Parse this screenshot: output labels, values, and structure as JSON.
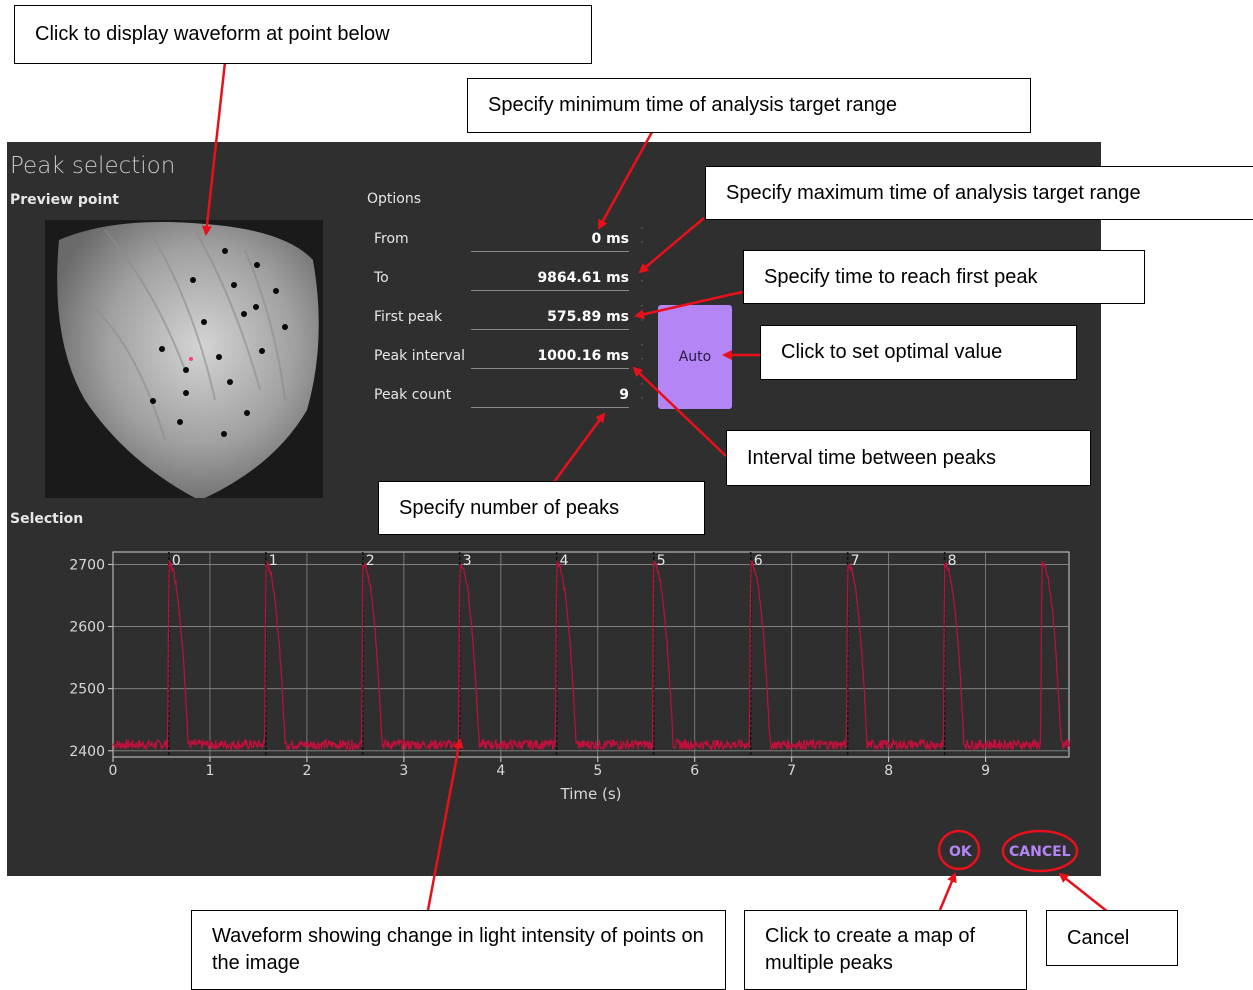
{
  "dialog": {
    "title": "Peak selection",
    "preview_label": "Preview point",
    "options_label": "Options",
    "selection_label": "Selection",
    "auto_label": "Auto",
    "ok_label": "OK",
    "cancel_label": "CANCEL"
  },
  "options": [
    {
      "label": "From",
      "value": "0 ms"
    },
    {
      "label": "To",
      "value": "9864.61 ms"
    },
    {
      "label": "First peak",
      "value": "575.89 ms"
    },
    {
      "label": "Peak interval",
      "value": "1000.16 ms"
    },
    {
      "label": "Peak count",
      "value": "9"
    }
  ],
  "callouts": {
    "waveform_point": "Click to display waveform at point below",
    "min_time": "Specify minimum time of analysis target range",
    "max_time": "Specify maximum time of analysis target range",
    "first_peak": "Specify time to reach first peak",
    "auto": "Click to set optimal value",
    "interval": "Interval time between peaks",
    "count": "Specify number of peaks",
    "waveform": "Waveform showing change in light intensity of points on the image",
    "ok": "Click to create a map of multiple peaks",
    "cancel": "Cancel"
  },
  "colors": {
    "dialog_bg": "#2f2f2f",
    "accent": "#b385f5",
    "trace": "#c0103c",
    "annotation": "#e8101a"
  },
  "chart_data": {
    "type": "line",
    "xlabel": "Time (s)",
    "ylabel": "",
    "xlim": [
      0,
      9.86
    ],
    "ylim": [
      2390,
      2720
    ],
    "xticks": [
      0,
      1,
      2,
      3,
      4,
      5,
      6,
      7,
      8,
      9
    ],
    "yticks": [
      2400,
      2500,
      2600,
      2700
    ],
    "grid": true,
    "peak_labels": [
      "0",
      "1",
      "2",
      "3",
      "4",
      "5",
      "6",
      "7",
      "8"
    ],
    "peak_times": [
      0.576,
      1.576,
      2.576,
      3.576,
      4.576,
      5.577,
      6.577,
      7.577,
      8.577
    ],
    "series": [
      {
        "baseline": 2410,
        "peak": 2700,
        "peak_times": [
          0.576,
          1.576,
          2.576,
          3.576,
          4.576,
          5.577,
          6.577,
          7.577,
          8.577,
          9.58
        ],
        "decay_duration_s": 0.2
      }
    ]
  }
}
